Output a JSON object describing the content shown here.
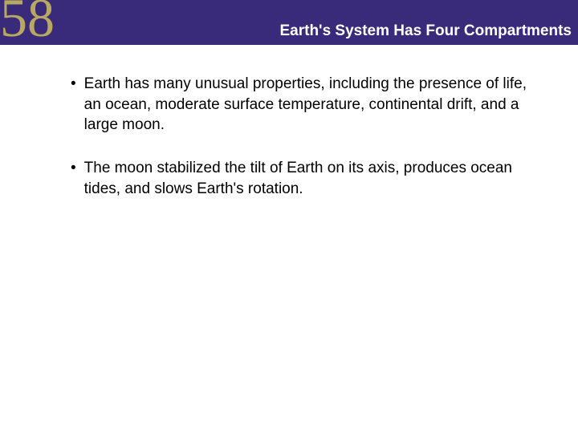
{
  "header": {
    "chapter_number": "58",
    "title": "Earth's System Has Four Compartments",
    "bar_color": "#3a2b7a",
    "number_color": "#b8a962",
    "title_color": "#ffffff",
    "title_fontsize": 19,
    "number_fontsize": 68
  },
  "content": {
    "text_color": "#000000",
    "fontsize": 19,
    "bullets": [
      {
        "text": "Earth has many unusual properties, including the presence of life, an ocean, moderate surface temperature, continental drift, and a large moon."
      },
      {
        "text": "The moon stabilized the tilt of Earth on its axis, produces ocean tides, and slows Earth's rotation."
      }
    ]
  },
  "background_color": "#ffffff"
}
